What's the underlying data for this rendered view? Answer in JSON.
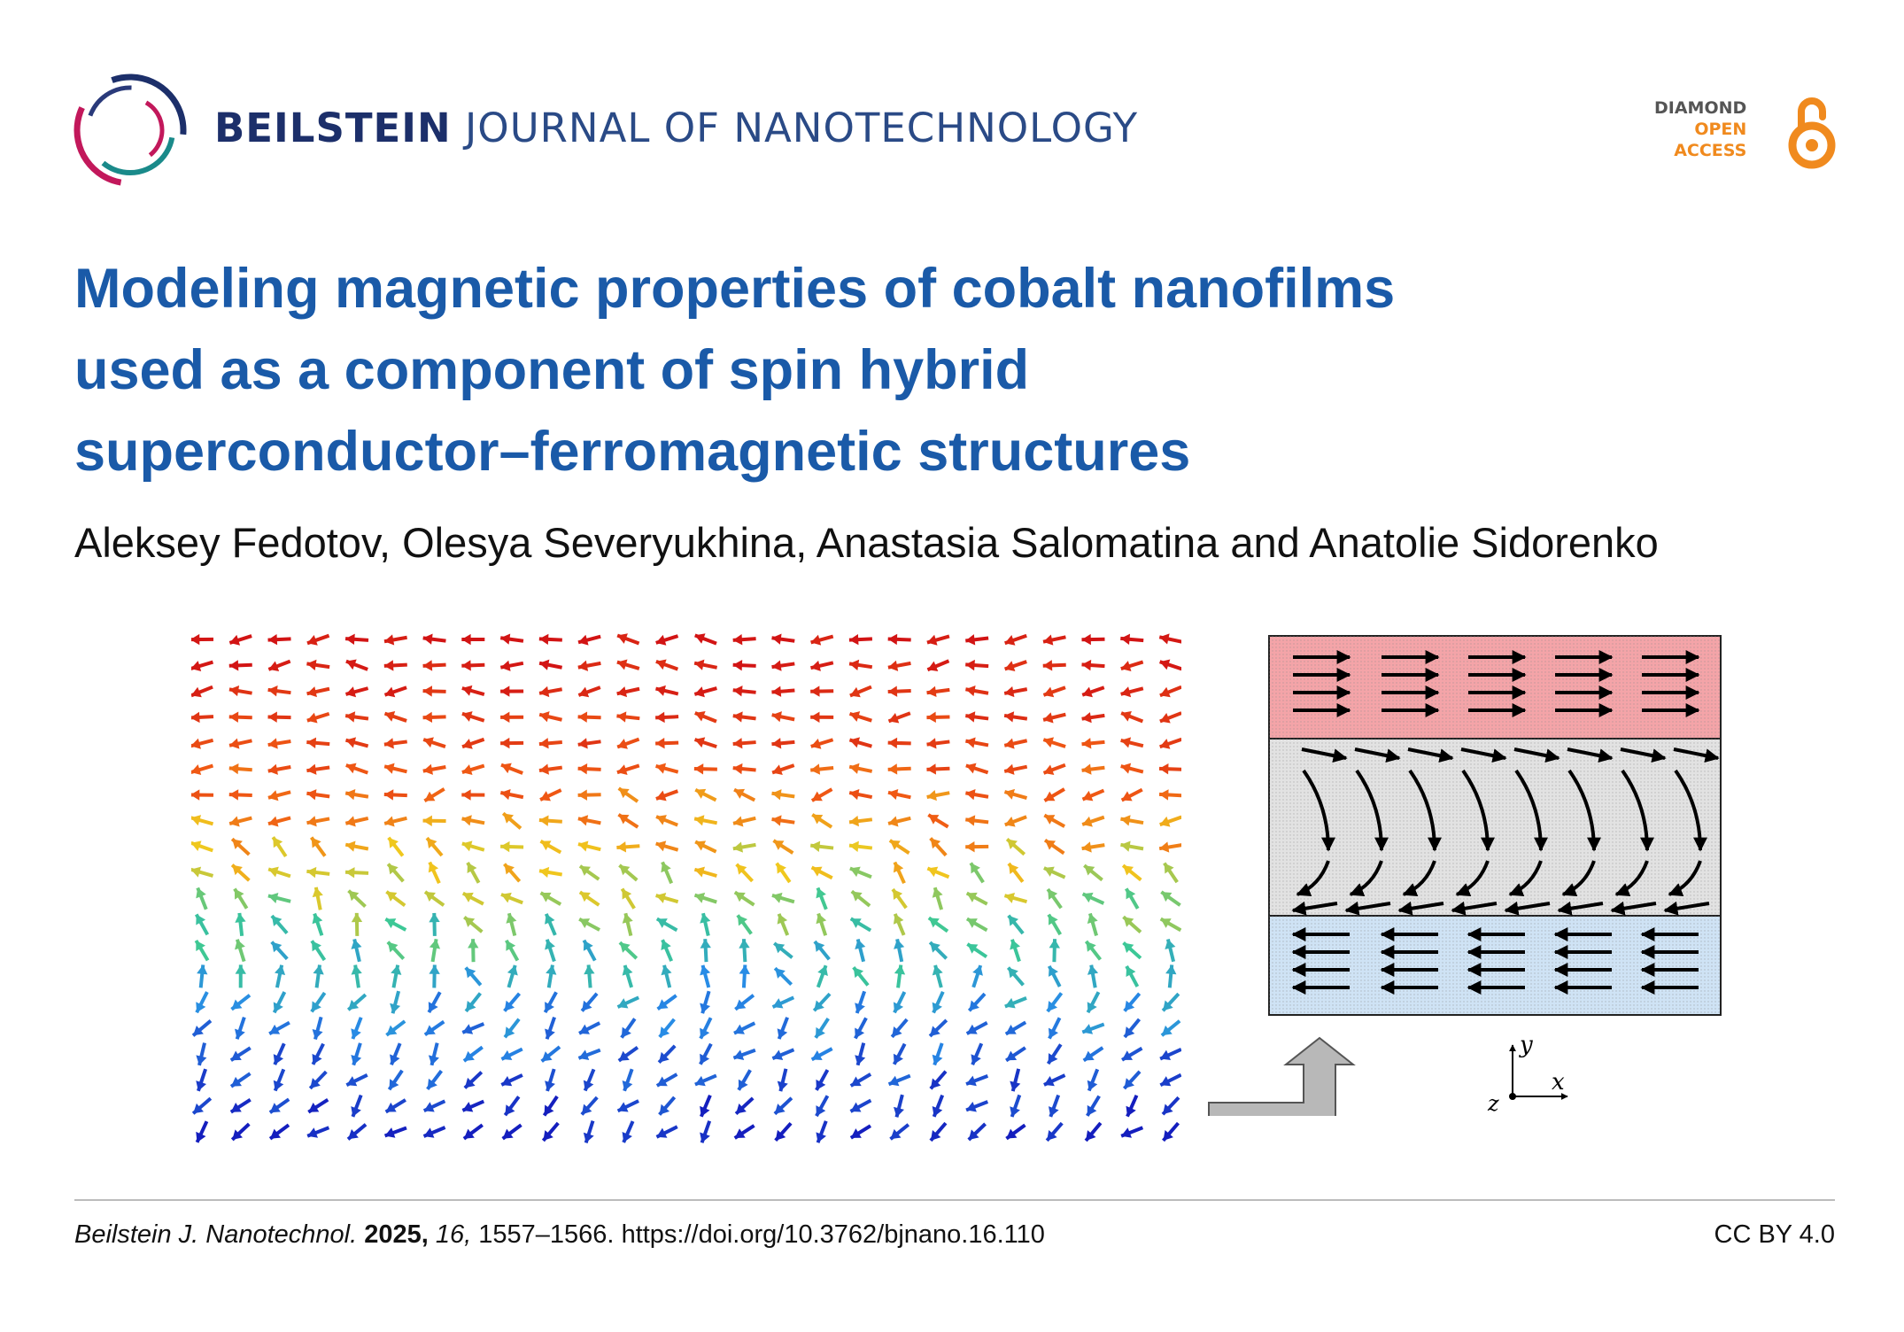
{
  "header": {
    "journal_name_bold": "BEILSTEIN",
    "journal_name_rest": "JOURNAL OF NANOTECHNOLOGY",
    "logo_icon": "beilstein-ring-logo",
    "open_access": {
      "line1": "DIAMOND",
      "line2": "OPEN",
      "line3": "ACCESS",
      "icon": "open-lock-icon"
    }
  },
  "title_lines": [
    "Modeling magnetic properties of cobalt nanofilms",
    "used as a component of spin hybrid",
    "superconductor–ferromagnetic structures"
  ],
  "authors": "Aleksey Fedotov, Olesya Severyukhina, Anastasia Salomatina and Anatolie Sidorenko",
  "figure": {
    "schematic_axes": {
      "y": "y",
      "x": "x",
      "z": "z"
    }
  },
  "footer": {
    "journal_abbrev": "Beilstein J. Nanotechnol.",
    "year": "2025,",
    "volume": "16,",
    "pages": "1557–1566.",
    "doi": "https://doi.org/10.3762/bjnano.16.110",
    "license": "CC BY 4.0"
  },
  "colors": {
    "title": "#1a5aa8",
    "journal_dark": "#1c2f6a",
    "open_access_orange": "#f08a1e",
    "top_layer": "#f4a4a8",
    "middle_layer": "#e2e2e2",
    "bottom_layer": "#cfe3f5"
  }
}
